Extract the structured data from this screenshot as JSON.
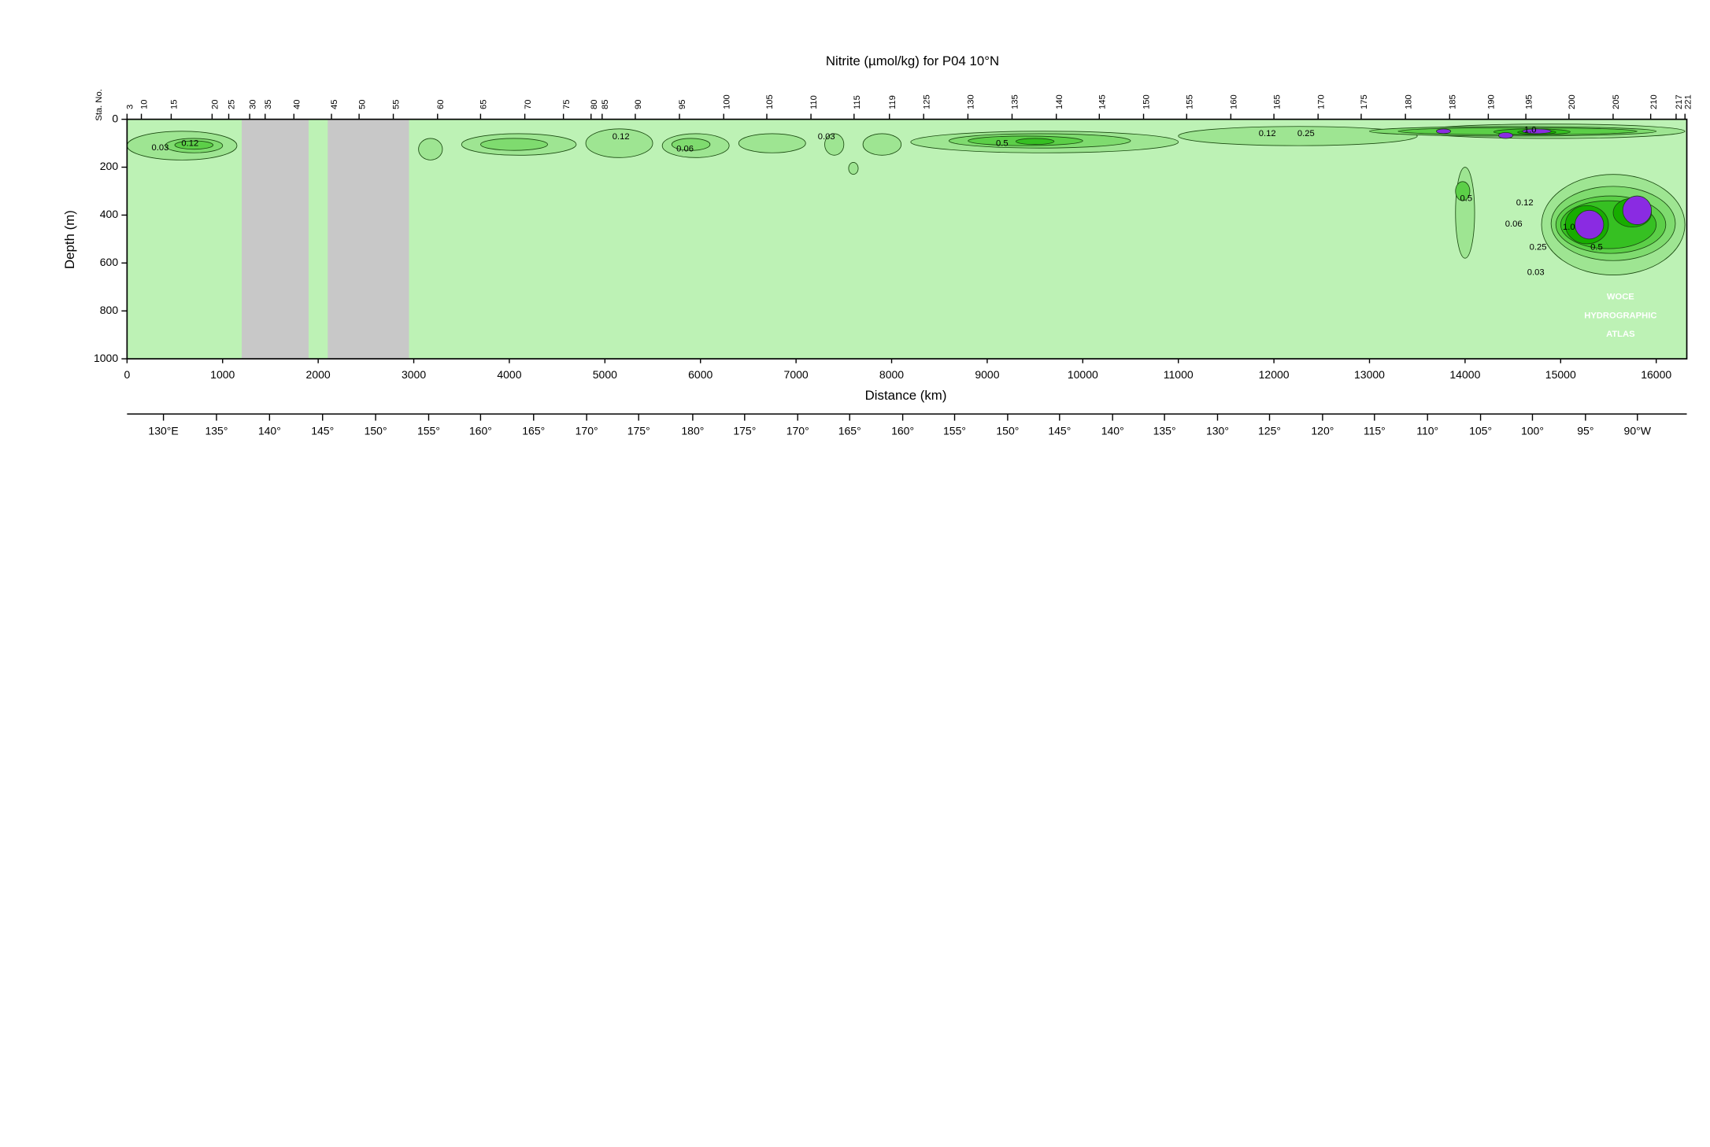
{
  "chart_data": {
    "type": "section",
    "title": "Nitrite (µmol/kg) for P04 10°N",
    "x_label": "Distance (km)",
    "y_label": "Depth (m)",
    "station_label": "Sta. No.",
    "xlim": [
      0,
      16320
    ],
    "ylim": [
      0,
      1000
    ],
    "xticks": [
      0,
      1000,
      2000,
      3000,
      4000,
      5000,
      6000,
      7000,
      8000,
      9000,
      10000,
      11000,
      12000,
      13000,
      14000,
      15000,
      16000
    ],
    "yticks": [
      0,
      200,
      400,
      600,
      800,
      1000
    ],
    "background_color": "#bdf2b5",
    "missing_color": "#c8c8c8",
    "missing_data_ranges": [
      [
        1200,
        1900
      ],
      [
        2100,
        2950
      ]
    ],
    "stations": {
      "labels": [
        3,
        10,
        15,
        20,
        25,
        30,
        35,
        40,
        45,
        50,
        55,
        60,
        65,
        70,
        75,
        80,
        85,
        90,
        95,
        100,
        105,
        110,
        115,
        119,
        125,
        130,
        135,
        140,
        145,
        150,
        155,
        160,
        165,
        170,
        175,
        180,
        185,
        190,
        195,
        200,
        205,
        210,
        217,
        221
      ],
      "x": [
        0,
        150,
        462,
        890,
        1064,
        1283,
        1445,
        1746,
        2139,
        2428,
        2786,
        3249,
        3699,
        4162,
        4566,
        4855,
        4971,
        5318,
        5780,
        6243,
        6694,
        7156,
        7607,
        7977,
        8335,
        8798,
        9260,
        9723,
        10173,
        10636,
        11087,
        11549,
        12000,
        12462,
        12913,
        13376,
        13838,
        14243,
        14636,
        15087,
        15549,
        15942,
        16208,
        16301
      ]
    },
    "longitude_ticks": [
      {
        "value": 381,
        "label": "130°E"
      },
      {
        "value": 936,
        "label": "135°"
      },
      {
        "value": 1491,
        "label": "140°"
      },
      {
        "value": 2046,
        "label": "145°"
      },
      {
        "value": 2601,
        "label": "150°"
      },
      {
        "value": 3156,
        "label": "155°"
      },
      {
        "value": 3699,
        "label": "160°"
      },
      {
        "value": 4254,
        "label": "165°"
      },
      {
        "value": 4809,
        "label": "170°"
      },
      {
        "value": 5353,
        "label": "175°"
      },
      {
        "value": 5919,
        "label": "180°"
      },
      {
        "value": 6462,
        "label": "175°"
      },
      {
        "value": 7017,
        "label": "170°"
      },
      {
        "value": 7561,
        "label": "165°"
      },
      {
        "value": 8116,
        "label": "160°"
      },
      {
        "value": 8659,
        "label": "155°"
      },
      {
        "value": 9214,
        "label": "150°"
      },
      {
        "value": 9757,
        "label": "145°"
      },
      {
        "value": 10312,
        "label": "140°"
      },
      {
        "value": 10855,
        "label": "135°"
      },
      {
        "value": 11410,
        "label": "130°"
      },
      {
        "value": 11954,
        "label": "125°"
      },
      {
        "value": 12509,
        "label": "120°"
      },
      {
        "value": 13052,
        "label": "115°"
      },
      {
        "value": 13607,
        "label": "110°"
      },
      {
        "value": 14162,
        "label": "105°"
      },
      {
        "value": 14705,
        "label": "100°"
      },
      {
        "value": 15260,
        "label": "95°"
      },
      {
        "value": 15803,
        "label": "90°W"
      }
    ],
    "contour_levels": [
      0.03,
      0.06,
      0.12,
      0.25,
      0.5,
      1.0
    ],
    "level_colors": [
      "#9ee592",
      "#7fdb6f",
      "#5ccf48",
      "#36c022",
      "#17ad00",
      "#8a2be2"
    ],
    "patches": [
      {
        "level": 0,
        "x": [
          0,
          1150
        ],
        "depth": [
          50,
          170
        ]
      },
      {
        "level": 0,
        "x": [
          3050,
          3300
        ],
        "depth": [
          80,
          170
        ]
      },
      {
        "level": 0,
        "x": [
          3500,
          4700
        ],
        "depth": [
          60,
          150
        ]
      },
      {
        "level": 0,
        "x": [
          4800,
          5500
        ],
        "depth": [
          40,
          160
        ]
      },
      {
        "level": 0,
        "x": [
          5600,
          6300
        ],
        "depth": [
          60,
          160
        ]
      },
      {
        "level": 0,
        "x": [
          6400,
          7100
        ],
        "depth": [
          60,
          140
        ]
      },
      {
        "level": 0,
        "x": [
          7300,
          7500
        ],
        "depth": [
          60,
          150
        ]
      },
      {
        "level": 0,
        "x": [
          7700,
          8100
        ],
        "depth": [
          60,
          150
        ]
      },
      {
        "level": 0,
        "x": [
          7550,
          7650
        ],
        "depth": [
          180,
          230
        ]
      },
      {
        "level": 0,
        "x": [
          8200,
          11000
        ],
        "depth": [
          50,
          140
        ]
      },
      {
        "level": 0,
        "x": [
          11000,
          13500
        ],
        "depth": [
          30,
          110
        ]
      },
      {
        "level": 0,
        "x": [
          13500,
          16300
        ],
        "depth": [
          20,
          80
        ]
      },
      {
        "level": 0,
        "x": [
          13900,
          14100
        ],
        "depth": [
          200,
          580
        ]
      },
      {
        "level": 0,
        "x": [
          14800,
          16300
        ],
        "depth": [
          230,
          650
        ]
      },
      {
        "level": 1,
        "x": [
          400,
          1000
        ],
        "depth": [
          80,
          140
        ]
      },
      {
        "level": 1,
        "x": [
          3700,
          4400
        ],
        "depth": [
          80,
          130
        ]
      },
      {
        "level": 1,
        "x": [
          5700,
          6100
        ],
        "depth": [
          80,
          130
        ]
      },
      {
        "level": 1,
        "x": [
          8600,
          10500
        ],
        "depth": [
          60,
          120
        ]
      },
      {
        "level": 1,
        "x": [
          13000,
          16000
        ],
        "depth": [
          30,
          70
        ]
      },
      {
        "level": 1,
        "x": [
          14900,
          16200
        ],
        "depth": [
          280,
          590
        ]
      },
      {
        "level": 2,
        "x": [
          500,
          900
        ],
        "depth": [
          90,
          125
        ]
      },
      {
        "level": 2,
        "x": [
          8800,
          10000
        ],
        "depth": [
          70,
          110
        ]
      },
      {
        "level": 2,
        "x": [
          13300,
          15800
        ],
        "depth": [
          35,
          65
        ]
      },
      {
        "level": 2,
        "x": [
          14950,
          16100
        ],
        "depth": [
          320,
          560
        ]
      },
      {
        "level": 2,
        "x": [
          13900,
          14050
        ],
        "depth": [
          260,
          340
        ]
      },
      {
        "level": 3,
        "x": [
          9300,
          9700
        ],
        "depth": [
          80,
          105
        ]
      },
      {
        "level": 3,
        "x": [
          14300,
          15100
        ],
        "depth": [
          40,
          65
        ]
      },
      {
        "level": 3,
        "x": [
          15000,
          16000
        ],
        "depth": [
          340,
          540
        ]
      },
      {
        "level": 4,
        "x": [
          15050,
          15500
        ],
        "depth": [
          360,
          520
        ]
      },
      {
        "level": 4,
        "x": [
          15550,
          15950
        ],
        "depth": [
          330,
          450
        ]
      },
      {
        "level": 4,
        "x": [
          14550,
          14950
        ],
        "depth": [
          45,
          63
        ]
      },
      {
        "level": 5,
        "x": [
          15150,
          15450
        ],
        "depth": [
          380,
          500
        ]
      },
      {
        "level": 5,
        "x": [
          15650,
          15950
        ],
        "depth": [
          320,
          440
        ]
      },
      {
        "level": 5,
        "x": [
          13700,
          13850
        ],
        "depth": [
          40,
          60
        ]
      },
      {
        "level": 5,
        "x": [
          14350,
          14500
        ],
        "depth": [
          55,
          80
        ]
      },
      {
        "level": 5,
        "x": [
          14600,
          14900
        ],
        "depth": [
          40,
          60
        ]
      }
    ],
    "contour_labels": [
      {
        "text": "0.03",
        "x": 347,
        "depth": 120
      },
      {
        "text": "0.12",
        "x": 659,
        "depth": 101
      },
      {
        "text": "0.12",
        "x": 5168,
        "depth": 74
      },
      {
        "text": "0.06",
        "x": 5838,
        "depth": 124
      },
      {
        "text": "0.03",
        "x": 7318,
        "depth": 74
      },
      {
        "text": "0.5",
        "x": 9156,
        "depth": 101
      },
      {
        "text": "0.12",
        "x": 11931,
        "depth": 60
      },
      {
        "text": "0.25",
        "x": 12335,
        "depth": 60
      },
      {
        "text": "1.0",
        "x": 14682,
        "depth": 46
      },
      {
        "text": "0.5",
        "x": 14012,
        "depth": 332
      },
      {
        "text": "0.12",
        "x": 14624,
        "depth": 350
      },
      {
        "text": "0.06",
        "x": 14509,
        "depth": 438
      },
      {
        "text": "0.25",
        "x": 14763,
        "depth": 535
      },
      {
        "text": "0.5",
        "x": 15376,
        "depth": 535
      },
      {
        "text": "0.03",
        "x": 14740,
        "depth": 641
      },
      {
        "text": "1.0",
        "x": 15087,
        "depth": 452
      }
    ],
    "watermark": [
      "WOCE",
      "HYDROGRAPHIC",
      "ATLAS"
    ]
  }
}
